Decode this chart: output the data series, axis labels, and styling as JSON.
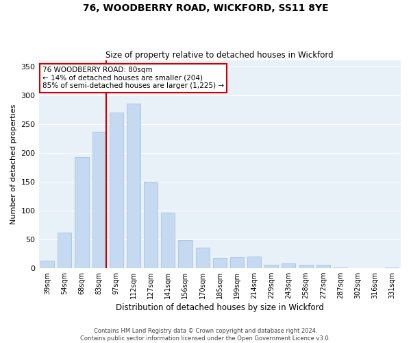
{
  "title": "76, WOODBERRY ROAD, WICKFORD, SS11 8YE",
  "subtitle": "Size of property relative to detached houses in Wickford",
  "xlabel": "Distribution of detached houses by size in Wickford",
  "ylabel": "Number of detached properties",
  "categories": [
    "39sqm",
    "54sqm",
    "68sqm",
    "83sqm",
    "97sqm",
    "112sqm",
    "127sqm",
    "141sqm",
    "156sqm",
    "170sqm",
    "185sqm",
    "199sqm",
    "214sqm",
    "229sqm",
    "243sqm",
    "258sqm",
    "272sqm",
    "287sqm",
    "302sqm",
    "316sqm",
    "331sqm"
  ],
  "values": [
    13,
    62,
    192,
    237,
    270,
    285,
    149,
    96,
    49,
    35,
    17,
    19,
    20,
    5,
    8,
    5,
    5,
    1,
    0,
    0,
    1
  ],
  "bar_color": "#c5d9f0",
  "bar_edge_color": "#a8c4e0",
  "marker_line_color": "#cc0000",
  "marker_bar_index": 3,
  "ylim": [
    0,
    360
  ],
  "yticks": [
    0,
    50,
    100,
    150,
    200,
    250,
    300,
    350
  ],
  "annotation_line1": "76 WOODBERRY ROAD: 80sqm",
  "annotation_line2": "← 14% of detached houses are smaller (204)",
  "annotation_line3": "85% of semi-detached houses are larger (1,225) →",
  "annotation_box_color": "#ffffff",
  "annotation_box_edge": "#cc0000",
  "footer_line1": "Contains HM Land Registry data © Crown copyright and database right 2024.",
  "footer_line2": "Contains public sector information licensed under the Open Government Licence v3.0.",
  "background_color": "#ffffff",
  "plot_bg_color": "#e8f0f8"
}
